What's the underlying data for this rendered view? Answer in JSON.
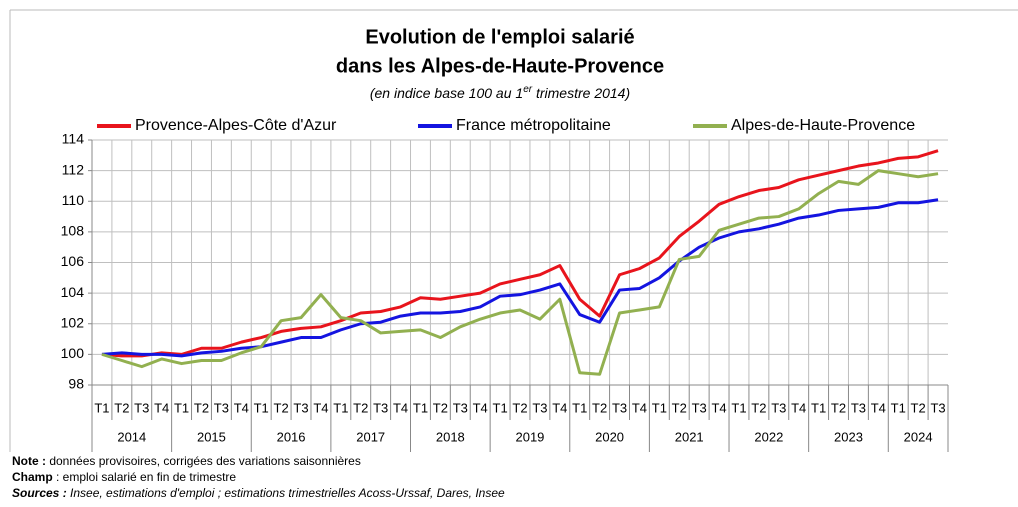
{
  "chart_data": {
    "type": "line",
    "title": [
      "Evolution de l'emploi salarié",
      "dans les Alpes-de-Haute-Provence"
    ],
    "subtitle": [
      "(en indice base 100 au 1",
      "er",
      " trimestre 2014)"
    ],
    "categories": [
      "T1",
      "T2",
      "T3",
      "T4",
      "T1",
      "T2",
      "T3",
      "T4",
      "T1",
      "T2",
      "T3",
      "T4",
      "T1",
      "T2",
      "T3",
      "T4",
      "T1",
      "T2",
      "T3",
      "T4",
      "T1",
      "T2",
      "T3",
      "T4",
      "T1",
      "T2",
      "T3",
      "T4",
      "T1",
      "T2",
      "T3",
      "T4",
      "T1",
      "T2",
      "T3",
      "T4",
      "T1",
      "T2",
      "T3",
      "T4",
      "T1",
      "T2",
      "T3"
    ],
    "year_groups": [
      "2014",
      "2015",
      "2016",
      "2017",
      "2018",
      "2019",
      "2020",
      "2021",
      "2022",
      "2023",
      "2024"
    ],
    "series": [
      {
        "name": "Provence-Alpes-Côte d'Azur",
        "color": "#e8141c",
        "values": [
          100,
          99.9,
          99.9,
          100.1,
          100.0,
          100.4,
          100.4,
          100.8,
          101.1,
          101.5,
          101.7,
          101.8,
          102.2,
          102.7,
          102.8,
          103.1,
          103.7,
          103.6,
          103.8,
          104.0,
          104.6,
          104.9,
          105.2,
          105.8,
          103.6,
          102.5,
          105.2,
          105.6,
          106.3,
          107.7,
          108.7,
          109.8,
          110.3,
          110.7,
          110.9,
          111.4,
          111.7,
          112.0,
          112.3,
          112.5,
          112.8,
          112.9,
          113.3
        ]
      },
      {
        "name": "France métropolitaine",
        "color": "#1414e0",
        "values": [
          100,
          100.1,
          100.0,
          100.0,
          99.9,
          100.1,
          100.2,
          100.4,
          100.5,
          100.8,
          101.1,
          101.1,
          101.6,
          102.0,
          102.1,
          102.5,
          102.7,
          102.7,
          102.8,
          103.1,
          103.8,
          103.9,
          104.2,
          104.6,
          102.6,
          102.1,
          104.2,
          104.3,
          105.0,
          106.1,
          107.0,
          107.6,
          108.0,
          108.2,
          108.5,
          108.9,
          109.1,
          109.4,
          109.5,
          109.6,
          109.9,
          109.9,
          110.1
        ]
      },
      {
        "name": "Alpes-de-Haute-Provence",
        "color": "#92b050",
        "values": [
          100,
          99.6,
          99.2,
          99.7,
          99.4,
          99.6,
          99.6,
          100.1,
          100.5,
          102.2,
          102.4,
          103.9,
          102.4,
          102.2,
          101.4,
          101.5,
          101.6,
          101.1,
          101.8,
          102.3,
          102.7,
          102.9,
          102.3,
          103.6,
          98.8,
          98.7,
          102.7,
          102.9,
          103.1,
          106.2,
          106.4,
          108.1,
          108.5,
          108.9,
          109.0,
          109.5,
          110.5,
          111.3,
          111.1,
          112.0,
          111.8,
          111.6,
          111.8
        ]
      }
    ],
    "ylim": [
      98,
      114
    ],
    "yticks": [
      98,
      100,
      102,
      104,
      106,
      108,
      110,
      112,
      114
    ],
    "grid": true,
    "legend": "top",
    "notes": [
      {
        "label": "Note :",
        "text": " données provisoires, corrigées des variations saisonnières"
      },
      {
        "label": "Champ",
        "text": " : emploi salarié en fin de trimestre"
      },
      {
        "label": "Sources :",
        "text": " Insee, estimations d'emploi ; estimations trimestrielles Acoss-Urssaf, Dares, Insee"
      }
    ]
  }
}
